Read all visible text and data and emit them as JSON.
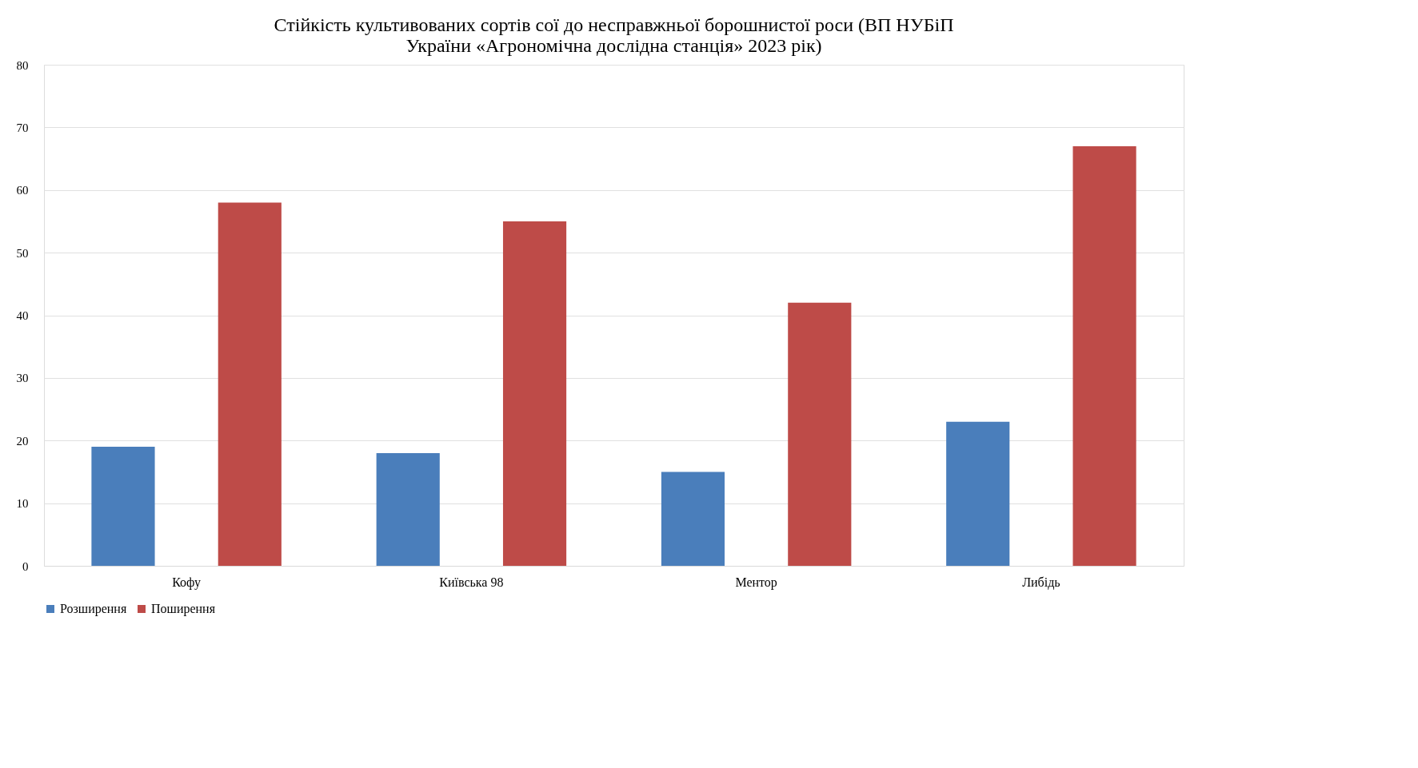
{
  "chart_data": {
    "type": "bar",
    "title": [
      "Стійкість культивованих сортів сої до несправжньої борошнистої роси (ВП НУБіП",
      "України «Агрономічна дослідна станція»  2023 рік)"
    ],
    "categories": [
      "Кофу",
      "Київська 98",
      "Ментор",
      "Либідь"
    ],
    "series": [
      {
        "name": "Розширення",
        "color": "#4a7ebb",
        "values": [
          19,
          18,
          15,
          23
        ]
      },
      {
        "name": "Поширення",
        "color": "#be4b48",
        "values": [
          58,
          55,
          42,
          67
        ]
      }
    ],
    "ylim": [
      0,
      80
    ],
    "yticks": [
      0,
      10,
      20,
      30,
      40,
      50,
      60,
      70,
      80
    ],
    "grid": "y",
    "legend": "bottom"
  }
}
